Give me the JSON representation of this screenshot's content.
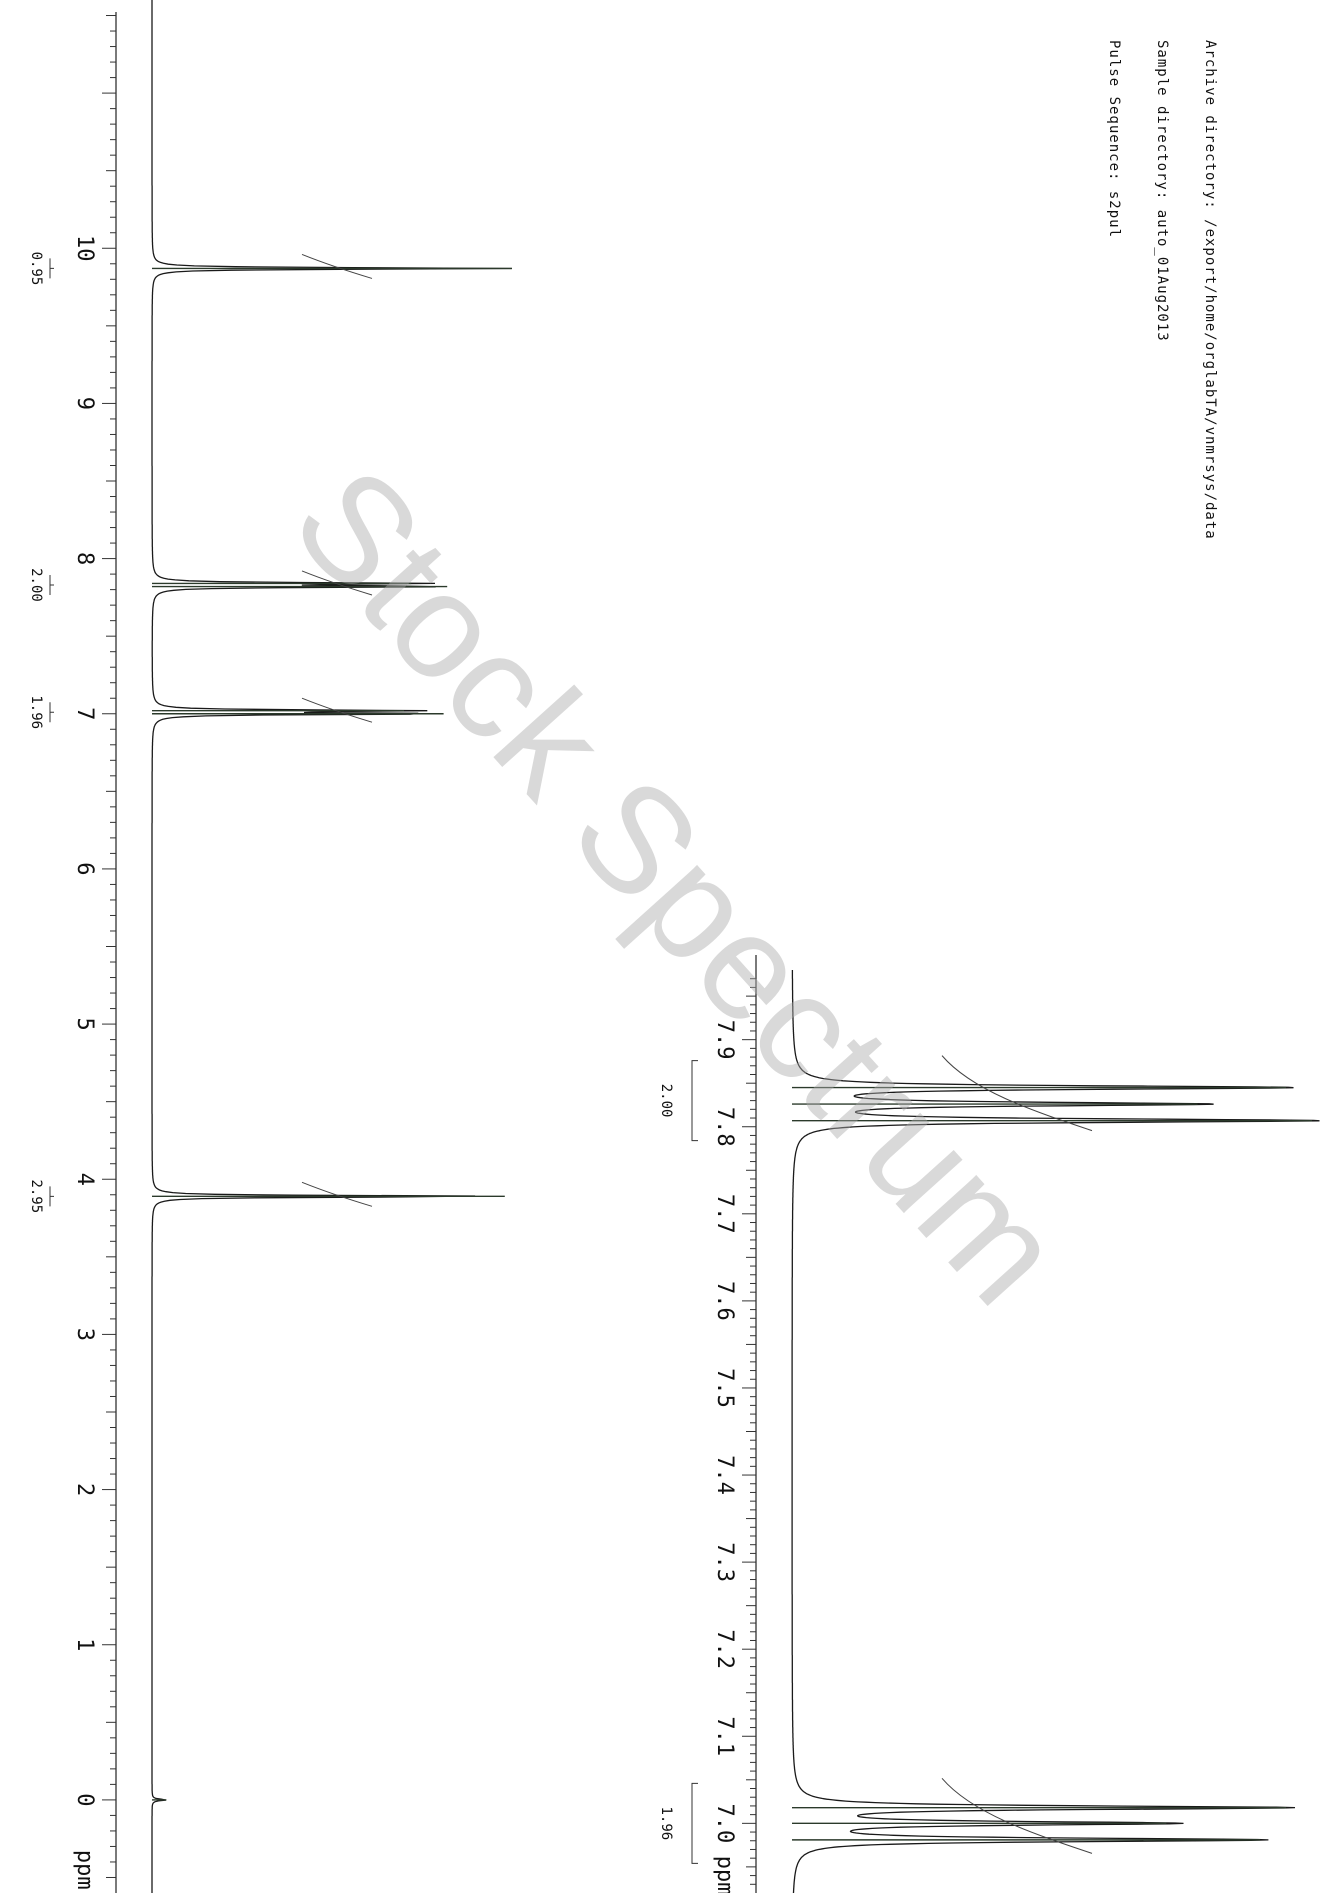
{
  "header": {
    "archive": "Archive directory: /export/home/orglabTA/vnmrsys/data",
    "sample": "Sample directory: auto_01Aug2013",
    "pulse": "Pulse Sequence: s2pul"
  },
  "watermark": "Stock Spectrum",
  "chart_data": [
    {
      "type": "line",
      "xlabel": "ppm",
      "xlim": [
        11.6,
        -0.6
      ],
      "ticks": [
        "10",
        "9",
        "8",
        "7",
        "6",
        "5",
        "4",
        "3",
        "2",
        "1",
        "0"
      ],
      "series": [
        {
          "peaks": [
            {
              "ppm": 9.87,
              "height": 1.0
            },
            {
              "ppm": 7.84,
              "height": 0.72
            },
            {
              "ppm": 7.82,
              "height": 0.82
            },
            {
              "ppm": 7.02,
              "height": 0.7
            },
            {
              "ppm": 7.0,
              "height": 0.81
            },
            {
              "ppm": 3.89,
              "height": 0.98
            },
            {
              "ppm": 0.0,
              "height": 0.04
            }
          ]
        }
      ],
      "integrals": [
        {
          "ppm": 9.87,
          "label": "0.95"
        },
        {
          "ppm": 7.83,
          "label": "2.00"
        },
        {
          "ppm": 7.01,
          "label": "1.96"
        },
        {
          "ppm": 3.89,
          "label": "2.95"
        }
      ]
    },
    {
      "type": "line",
      "xlabel": "ppm",
      "xlim": [
        7.98,
        6.92
      ],
      "ticks": [
        "7.9",
        "7.8",
        "7.7",
        "7.6",
        "7.5",
        "7.4",
        "7.3",
        "7.2",
        "7.1",
        "7.0"
      ],
      "series": [
        {
          "peaks": [
            {
              "ppm": 7.845,
              "height": 0.95
            },
            {
              "ppm": 7.826,
              "height": 0.78
            },
            {
              "ppm": 7.807,
              "height": 1.0
            },
            {
              "ppm": 7.018,
              "height": 0.95
            },
            {
              "ppm": 7.0,
              "height": 0.72
            },
            {
              "ppm": 6.981,
              "height": 0.9
            }
          ]
        }
      ],
      "integrals": [
        {
          "ppm": 7.83,
          "label": "2.00"
        },
        {
          "ppm": 7.0,
          "label": "1.96"
        }
      ]
    }
  ]
}
